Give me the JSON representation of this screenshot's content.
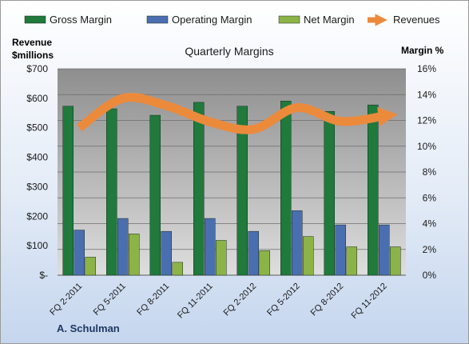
{
  "chart_data": {
    "type": "bar",
    "title": "Quarterly Margins",
    "categories": [
      "FQ 2-2011",
      "FQ 5-2011",
      "FQ 8-2011",
      "FQ 11-2011",
      "FQ 2-2012",
      "FQ 5-2012",
      "FQ 8-2012",
      "FQ 11-2012"
    ],
    "series": [
      {
        "name": "Gross Margin",
        "axis": "right",
        "kind": "bar",
        "color": "#1f7a3c",
        "values": [
          13.1,
          12.9,
          12.4,
          13.4,
          13.1,
          13.5,
          12.7,
          13.2
        ]
      },
      {
        "name": "Operating Margin",
        "axis": "right",
        "kind": "bar",
        "color": "#4a6fb0",
        "values": [
          3.5,
          4.4,
          3.4,
          4.4,
          3.4,
          5.0,
          3.9,
          3.9
        ]
      },
      {
        "name": "Net Margin",
        "axis": "right",
        "kind": "bar",
        "color": "#8cb347",
        "values": [
          1.4,
          3.2,
          1.0,
          2.7,
          1.9,
          3.0,
          2.2,
          2.2
        ]
      },
      {
        "name": "Revenues",
        "axis": "left",
        "kind": "line",
        "color": "#ec8a3c",
        "values": [
          500,
          600,
          575,
          520,
          495,
          568,
          522,
          540
        ]
      }
    ],
    "left_axis": {
      "label_line1": "Revenue",
      "label_line2": "$millions",
      "ylim": [
        0,
        700
      ],
      "ticks": [
        0,
        100,
        200,
        300,
        400,
        500,
        600,
        700
      ],
      "tick_labels": [
        "$-",
        "$100",
        "$200",
        "$300",
        "$400",
        "$500",
        "$600",
        "$700"
      ]
    },
    "right_axis": {
      "label": "Margin %",
      "ylim": [
        0,
        16
      ],
      "ticks": [
        0,
        2,
        4,
        6,
        8,
        10,
        12,
        14,
        16
      ],
      "tick_labels": [
        "0%",
        "2%",
        "4%",
        "6%",
        "8%",
        "10%",
        "12%",
        "14%",
        "16%"
      ]
    },
    "grid": true,
    "legend": "top"
  },
  "source": "A. Schulman"
}
